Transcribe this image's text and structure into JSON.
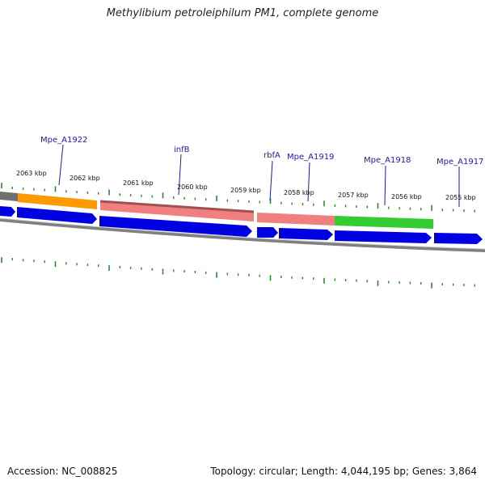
{
  "title": "Methylibium petroleiphilum PM1, complete genome",
  "footer": {
    "accession": "Accession: NC_008825",
    "summary": "Topology: circular; Length: 4,044,195 bp; Genes: 3,864"
  },
  "colors": {
    "backbone": "#808080",
    "forward_gene": "#0000e0",
    "tick": "#2a8a2a",
    "callout": "#1a1aa8",
    "orange": "#ff9900",
    "salmon": "#f08080",
    "green": "#33cc33",
    "grey": "#707070"
  },
  "scale": {
    "tick_labels": [
      "2063 kbp",
      "2062 kbp",
      "2061 kbp",
      "2060 kbp",
      "2059 kbp",
      "2058 kbp",
      "2057 kbp",
      "2056 kbp",
      "2055 kbp"
    ]
  },
  "gene_labels": [
    "Mpe_A1922",
    "infB",
    "rbfA",
    "Mpe_A1919",
    "Mpe_A1918",
    "Mpe_A1917"
  ]
}
